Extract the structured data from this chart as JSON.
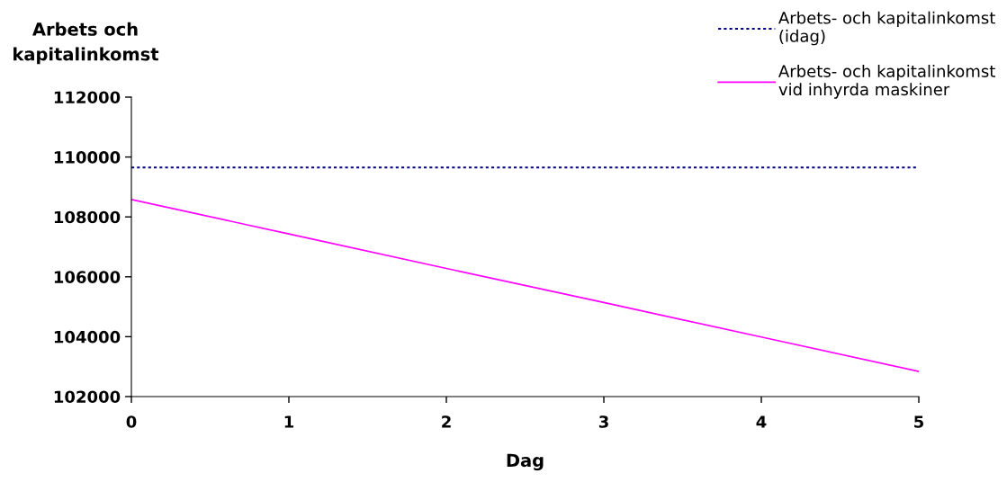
{
  "chart_data": {
    "type": "line",
    "xlabel": "Dag",
    "ylabel": "Arbets och\nkapitalinkomst",
    "x": [
      0,
      1,
      2,
      3,
      4,
      5
    ],
    "series": [
      {
        "name": "Arbets- och kapitalinkomst\n(idag)",
        "color": "#000080",
        "line_style": "dotted",
        "values": [
          109650,
          109650,
          109650,
          109650,
          109650,
          109650
        ]
      },
      {
        "name": "Arbets- och kapitalinkomst\nvid inhyrda maskiner",
        "color": "#ff00ff",
        "line_style": "solid",
        "values": [
          108580,
          107430,
          106280,
          105140,
          103990,
          102840
        ]
      }
    ],
    "xlim": [
      0,
      5
    ],
    "xticks": [
      0,
      1,
      2,
      3,
      4,
      5
    ],
    "ylim": [
      102000,
      112000
    ],
    "yticks": [
      102000,
      104000,
      106000,
      108000,
      110000,
      112000
    ],
    "grid": false,
    "legend": "top right",
    "marker": "none"
  }
}
